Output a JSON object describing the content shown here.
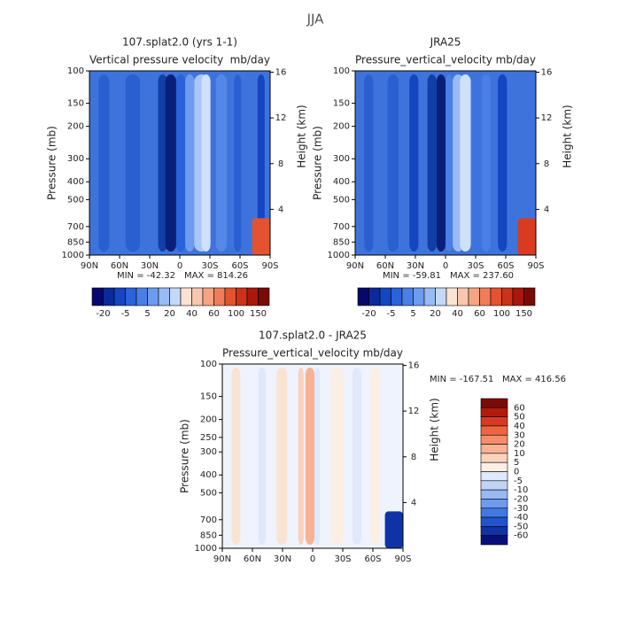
{
  "title": "JJA",
  "lat_ticks": [
    "90N",
    "60N",
    "30N",
    "0",
    "30S",
    "60S",
    "90S"
  ],
  "height_ticks": [
    16,
    12,
    8,
    4
  ],
  "panels": [
    {
      "title": "107.splat2.0 (yrs 1-1)",
      "subtitle": "Vertical pressure velocity",
      "units": "mb/day",
      "y_label": "Pressure (mb)",
      "y2_label": "Height (km)",
      "pressure_ticks": [
        100,
        150,
        200,
        300,
        400,
        500,
        700,
        850,
        1000
      ],
      "min": "MIN = -42.32",
      "max": "MAX = 814.26"
    },
    {
      "title": "JRA25",
      "subtitle": "Pressure_vertical_velocity",
      "units": "mb/day",
      "y_label": "Pressure (mb)",
      "y2_label": "Height (km)",
      "pressure_ticks": [
        100,
        150,
        200,
        300,
        400,
        500,
        700,
        850,
        1000
      ],
      "min": "MIN = -59.81",
      "max": "MAX = 237.60"
    },
    {
      "title": "107.splat2.0 - JRA25",
      "subtitle": "Pressure_vertical_velocity",
      "units": "mb/day",
      "y_label": "Pressure (mb)",
      "y2_label": "Height (km)",
      "pressure_ticks": [
        100,
        150,
        200,
        250,
        300,
        400,
        500,
        700,
        850,
        1000
      ],
      "min": "MIN = -167.51",
      "max": "MAX = 416.56"
    }
  ],
  "colorbar": {
    "labels": [
      -20,
      -5,
      5,
      20,
      40,
      60,
      100,
      150
    ],
    "colors": [
      "#08076e",
      "#0c2a9a",
      "#1446c2",
      "#2a62d8",
      "#4a7fe6",
      "#6d9cef",
      "#98bbf4",
      "#c4d8f8",
      "#fbe3d4",
      "#f8c7ad",
      "#f5a582",
      "#f07d58",
      "#e4532f",
      "#cc3219",
      "#a8180d",
      "#7a0a05"
    ]
  },
  "diff_colorbar": {
    "labels": [
      60,
      50,
      40,
      30,
      20,
      10,
      5,
      0,
      -5,
      -10,
      -20,
      -30,
      -40,
      -50,
      -60
    ],
    "colors": [
      "#7a0a05",
      "#b21a0e",
      "#d83b1f",
      "#ee6640",
      "#f58e68",
      "#f8b294",
      "#fbd2bd",
      "#fdeee4",
      "#dfe9fb",
      "#c0d4f7",
      "#98b9f3",
      "#6d9cef",
      "#4178e2",
      "#2255cc",
      "#0f32a6",
      "#07107a"
    ]
  }
}
